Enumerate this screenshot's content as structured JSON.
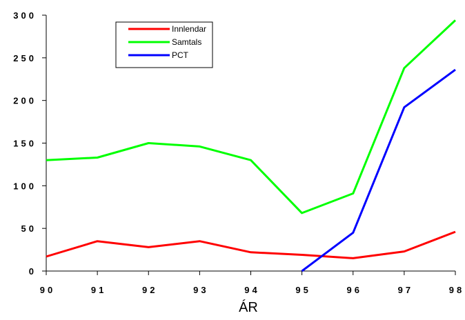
{
  "chart_data": {
    "type": "line",
    "xlabel": "ÁR",
    "ylabel": "",
    "categories": [
      "90",
      "91",
      "92",
      "93",
      "94",
      "95",
      "96",
      "97",
      "98"
    ],
    "y_ticks": [
      "0",
      "50",
      "100",
      "150",
      "200",
      "250",
      "300"
    ],
    "ylim": [
      0,
      300
    ],
    "grid": false,
    "legend_position": "top-left",
    "series": [
      {
        "name": "Innlendar",
        "color": "#ff0000",
        "values": [
          17,
          35,
          28,
          35,
          22,
          19,
          15,
          23,
          46
        ]
      },
      {
        "name": "Samtals",
        "color": "#00ff00",
        "values": [
          130,
          133,
          150,
          146,
          130,
          68,
          91,
          238,
          294
        ]
      },
      {
        "name": "PCT",
        "color": "#0000ff",
        "values": [
          null,
          null,
          null,
          null,
          null,
          0,
          45,
          192,
          236
        ]
      }
    ]
  }
}
